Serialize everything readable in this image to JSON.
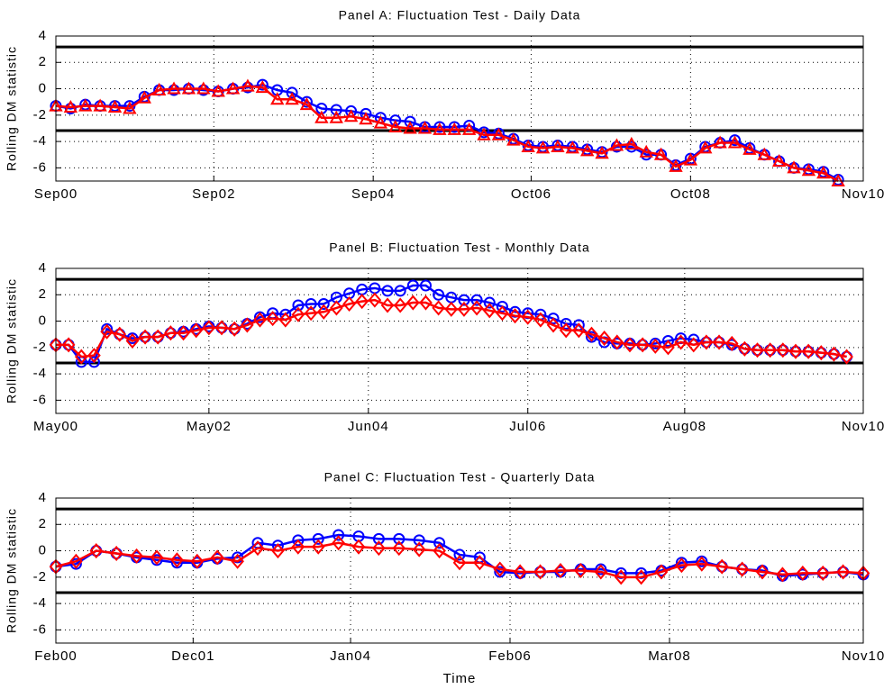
{
  "chart_data": [
    {
      "type": "line",
      "title": "Panel A: Fluctuation Test - Daily Data",
      "ylabel": "Rolling DM statistic",
      "x": [
        0,
        1,
        2,
        3,
        4,
        5,
        6,
        7,
        8,
        9,
        10,
        11,
        12,
        13,
        14,
        15,
        16,
        17,
        18,
        19,
        20,
        21,
        22,
        23,
        24,
        25,
        26,
        27,
        28,
        29,
        30,
        31,
        32,
        33,
        34,
        35,
        36,
        37,
        38,
        39,
        40,
        41,
        42,
        43,
        44,
        45,
        46,
        47,
        48,
        49,
        50,
        51,
        52,
        53
      ],
      "series": [
        {
          "color": "#0000ff",
          "marker": "o",
          "values": [
            -1.3,
            -1.5,
            -1.2,
            -1.3,
            -1.3,
            -1.3,
            -0.6,
            -0.1,
            -0.1,
            0,
            -0.1,
            -0.2,
            0,
            0.1,
            0.3,
            -0.1,
            -0.3,
            -1.0,
            -1.5,
            -1.6,
            -1.7,
            -1.9,
            -2.2,
            -2.4,
            -2.5,
            -2.9,
            -2.9,
            -2.9,
            -2.8,
            -3.3,
            -3.4,
            -3.8,
            -4.3,
            -4.4,
            -4.3,
            -4.4,
            -4.6,
            -4.8,
            -4.4,
            -4.4,
            -5.0,
            -5.0,
            -5.8,
            -5.3,
            -4.4,
            -4.1,
            -3.9,
            -4.5,
            -5.0,
            -5.5,
            -6.0,
            -6.1,
            -6.3,
            -6.9
          ]
        },
        {
          "color": "#ff0000",
          "marker": "^",
          "values": [
            -1.3,
            -1.4,
            -1.3,
            -1.3,
            -1.4,
            -1.5,
            -0.7,
            -0.1,
            0,
            0,
            0,
            -0.2,
            0,
            0.2,
            0.1,
            -0.8,
            -0.8,
            -1.2,
            -2.2,
            -2.2,
            -2.1,
            -2.3,
            -2.6,
            -2.9,
            -3.0,
            -3.0,
            -3.1,
            -3.1,
            -3.1,
            -3.5,
            -3.5,
            -3.9,
            -4.4,
            -4.5,
            -4.4,
            -4.5,
            -4.7,
            -4.9,
            -4.3,
            -4.2,
            -4.8,
            -5.0,
            -5.9,
            -5.4,
            -4.5,
            -4.1,
            -4.1,
            -4.6,
            -5.0,
            -5.5,
            -6.0,
            -6.2,
            -6.4,
            -7.0
          ]
        }
      ],
      "hlines": [
        3.17,
        -3.17
      ],
      "hline_color": "#000000",
      "xlim": [
        0,
        54.7
      ],
      "xticks": [
        {
          "value": 0,
          "label": "Sep00"
        },
        {
          "value": 10.7,
          "label": "Sep02"
        },
        {
          "value": 21.5,
          "label": "Sep04"
        },
        {
          "value": 32.2,
          "label": "Oct06"
        },
        {
          "value": 43.0,
          "label": "Oct08"
        },
        {
          "value": 54.7,
          "label": "Nov10"
        }
      ],
      "ylim": [
        -7,
        4
      ],
      "yticks": [
        -6,
        -4,
        -2,
        0,
        2,
        4
      ],
      "grid": true
    },
    {
      "type": "line",
      "title": "Panel B: Fluctuation Test - Monthly Data",
      "ylabel": "Rolling DM statistic",
      "x": [
        0,
        1,
        2,
        3,
        4,
        5,
        6,
        7,
        8,
        9,
        10,
        11,
        12,
        13,
        14,
        15,
        16,
        17,
        18,
        19,
        20,
        21,
        22,
        23,
        24,
        25,
        26,
        27,
        28,
        29,
        30,
        31,
        32,
        33,
        34,
        35,
        36,
        37,
        38,
        39,
        40,
        41,
        42,
        43,
        44,
        45,
        46,
        47,
        48,
        49,
        50,
        51,
        52,
        53,
        54,
        55,
        56,
        57,
        58,
        59,
        60,
        61,
        62
      ],
      "series": [
        {
          "color": "#0000ff",
          "marker": "o",
          "values": [
            -1.8,
            -1.8,
            -3.1,
            -3.1,
            -0.6,
            -1.0,
            -1.3,
            -1.2,
            -1.2,
            -0.9,
            -0.8,
            -0.6,
            -0.4,
            -0.5,
            -0.6,
            -0.2,
            0.3,
            0.6,
            0.5,
            1.2,
            1.3,
            1.3,
            1.8,
            2.1,
            2.4,
            2.5,
            2.3,
            2.3,
            2.7,
            2.7,
            2.0,
            1.8,
            1.6,
            1.6,
            1.4,
            1.1,
            0.7,
            0.6,
            0.5,
            0.2,
            -0.2,
            -0.3,
            -1.2,
            -1.6,
            -1.7,
            -1.7,
            -1.8,
            -1.7,
            -1.5,
            -1.3,
            -1.4,
            -1.6,
            -1.6,
            -1.8,
            -2.1,
            -2.2,
            -2.2,
            -2.2,
            -2.3,
            -2.3,
            -2.4,
            -2.5,
            -2.7
          ]
        },
        {
          "color": "#ff0000",
          "marker": "d",
          "values": [
            -1.8,
            -1.8,
            -2.7,
            -2.6,
            -0.8,
            -1.0,
            -1.5,
            -1.2,
            -1.2,
            -0.9,
            -0.9,
            -0.7,
            -0.5,
            -0.5,
            -0.6,
            -0.3,
            0.1,
            0.2,
            0.1,
            0.5,
            0.6,
            0.7,
            1.0,
            1.3,
            1.5,
            1.6,
            1.2,
            1.2,
            1.4,
            1.4,
            1.0,
            0.9,
            0.9,
            1.0,
            0.8,
            0.6,
            0.4,
            0.3,
            0.1,
            -0.3,
            -0.7,
            -0.7,
            -1.0,
            -1.3,
            -1.6,
            -1.8,
            -1.8,
            -1.9,
            -2.0,
            -1.6,
            -1.8,
            -1.6,
            -1.6,
            -1.7,
            -2.1,
            -2.2,
            -2.2,
            -2.2,
            -2.3,
            -2.3,
            -2.4,
            -2.5,
            -2.7
          ]
        }
      ],
      "hlines": [
        3.17,
        -3.17
      ],
      "hline_color": "#000000",
      "xlim": [
        0,
        63.3
      ],
      "xticks": [
        {
          "value": 0,
          "label": "May00"
        },
        {
          "value": 12.0,
          "label": "May02"
        },
        {
          "value": 24.5,
          "label": "Jun04"
        },
        {
          "value": 37.0,
          "label": "Jul06"
        },
        {
          "value": 49.3,
          "label": "Aug08"
        },
        {
          "value": 63.3,
          "label": "Nov10"
        }
      ],
      "ylim": [
        -7,
        4
      ],
      "yticks": [
        -6,
        -4,
        -2,
        0,
        2,
        4
      ],
      "grid": true
    },
    {
      "type": "line",
      "title": "Panel C: Fluctuation Test - Quarterly Data",
      "ylabel": "Rolling DM statistic",
      "xlabel": "Time",
      "x": [
        0,
        1,
        2,
        3,
        4,
        5,
        6,
        7,
        8,
        9,
        10,
        11,
        12,
        13,
        14,
        15,
        16,
        17,
        18,
        19,
        20,
        21,
        22,
        23,
        24,
        25,
        26,
        27,
        28,
        29,
        30,
        31,
        32,
        33,
        34,
        35,
        36,
        37,
        38,
        39,
        40
      ],
      "series": [
        {
          "color": "#0000ff",
          "marker": "o",
          "values": [
            -1.2,
            -1.0,
            0,
            -0.2,
            -0.5,
            -0.7,
            -0.9,
            -0.9,
            -0.6,
            -0.5,
            0.6,
            0.4,
            0.8,
            0.9,
            1.2,
            1.1,
            0.9,
            0.9,
            0.8,
            0.6,
            -0.3,
            -0.5,
            -1.6,
            -1.7,
            -1.6,
            -1.6,
            -1.4,
            -1.4,
            -1.7,
            -1.7,
            -1.5,
            -0.9,
            -0.8,
            -1.2,
            -1.4,
            -1.5,
            -1.9,
            -1.8,
            -1.7,
            -1.6,
            -1.8
          ]
        },
        {
          "color": "#ff0000",
          "marker": "d",
          "values": [
            -1.2,
            -0.8,
            0,
            -0.2,
            -0.4,
            -0.5,
            -0.7,
            -0.8,
            -0.5,
            -0.8,
            0.2,
            0,
            0.3,
            0.3,
            0.6,
            0.3,
            0.2,
            0.2,
            0.1,
            0,
            -0.9,
            -0.9,
            -1.4,
            -1.6,
            -1.6,
            -1.5,
            -1.5,
            -1.6,
            -2.0,
            -2.0,
            -1.6,
            -1.1,
            -1.0,
            -1.2,
            -1.4,
            -1.6,
            -1.8,
            -1.7,
            -1.7,
            -1.6,
            -1.7
          ]
        }
      ],
      "hlines": [
        3.17,
        -3.17
      ],
      "hline_color": "#000000",
      "xlim": [
        0,
        40
      ],
      "xticks": [
        {
          "value": 0,
          "label": "Feb00"
        },
        {
          "value": 6.8,
          "label": "Dec01"
        },
        {
          "value": 14.6,
          "label": "Jan04"
        },
        {
          "value": 22.5,
          "label": "Feb06"
        },
        {
          "value": 30.4,
          "label": "Mar08"
        },
        {
          "value": 40,
          "label": "Nov10"
        }
      ],
      "ylim": [
        -7,
        4
      ],
      "yticks": [
        -6,
        -4,
        -2,
        0,
        2,
        4
      ],
      "grid": true
    }
  ]
}
